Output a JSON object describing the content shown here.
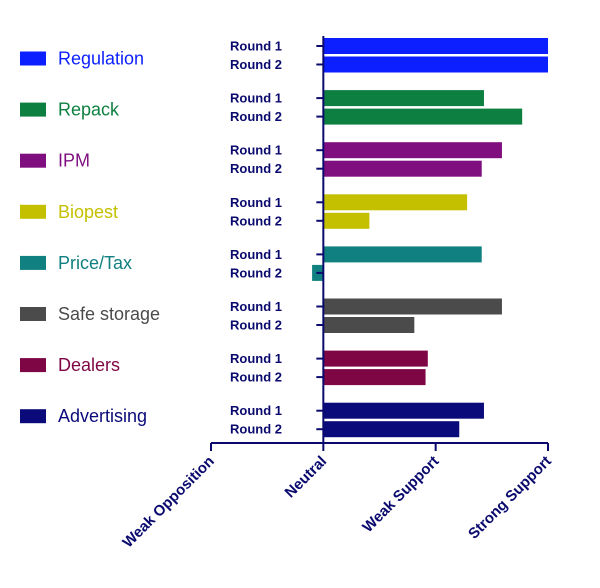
{
  "chart_data": {
    "type": "bar",
    "orientation": "horizontal",
    "x_ticks": [
      "Weak Opposition",
      "Neutral",
      "Weak Support",
      "Strong Support"
    ],
    "xlim": [
      -1,
      2
    ],
    "round_labels": [
      "Round 1",
      "Round 2"
    ],
    "groups": [
      {
        "name": "Regulation",
        "color": "#0b1fff",
        "values": [
          2.0,
          2.0
        ]
      },
      {
        "name": "Repack",
        "color": "#0d8041",
        "values": [
          1.43,
          1.77
        ]
      },
      {
        "name": "IPM",
        "color": "#7f0f7f",
        "values": [
          1.59,
          1.41
        ]
      },
      {
        "name": "Biopest",
        "color": "#c4c000",
        "values": [
          1.28,
          0.41
        ]
      },
      {
        "name": "Price/Tax",
        "color": "#108080",
        "values": [
          1.41,
          -0.1
        ]
      },
      {
        "name": "Safe storage",
        "color": "#4b4b4b",
        "values": [
          1.59,
          0.81
        ]
      },
      {
        "name": "Dealers",
        "color": "#7f0645",
        "values": [
          0.93,
          0.91
        ]
      },
      {
        "name": "Advertising",
        "color": "#0a0a7a",
        "values": [
          1.43,
          1.21
        ]
      }
    ],
    "axis_color": "#0a0a6e",
    "grid": false,
    "legend_position": "left"
  }
}
